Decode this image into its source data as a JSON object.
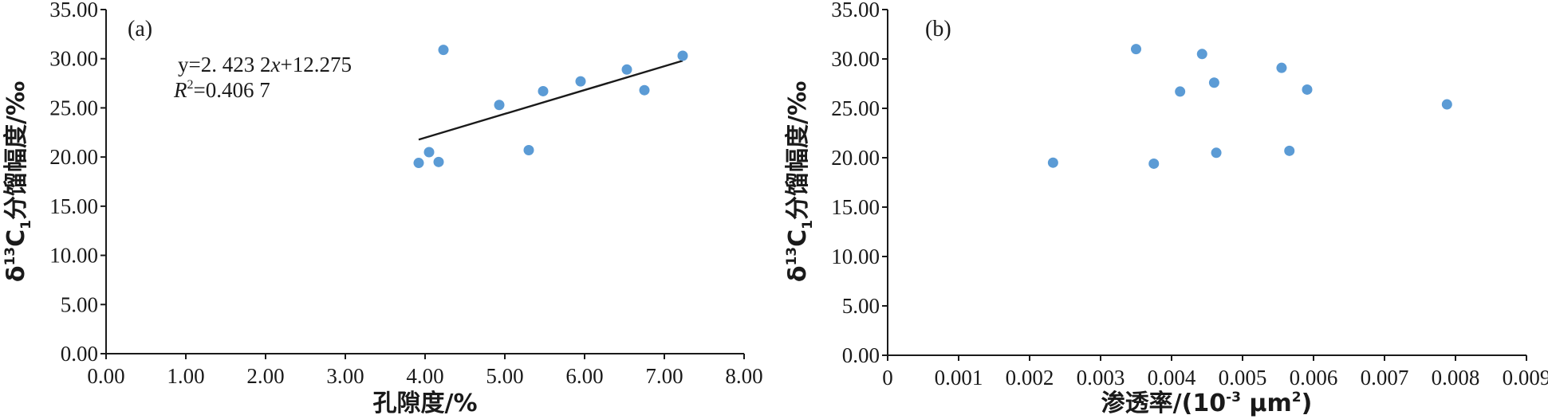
{
  "colors": {
    "point": "#5b9bd5",
    "axis": "#1a1a1a",
    "fit_line": "#1a1a1a"
  },
  "chart_data": [
    {
      "panel_label": "(a)",
      "type": "scatter",
      "xlabel": "孔隙度/%",
      "ylabel_parts": {
        "delta": "δ",
        "sup": "13",
        "c": "C",
        "sub": "1",
        "rest": "分馏幅度/‰"
      },
      "xlim": [
        0,
        8
      ],
      "ylim": [
        0,
        35
      ],
      "x_ticks": [
        "0.00",
        "1.00",
        "2.00",
        "3.00",
        "4.00",
        "5.00",
        "6.00",
        "7.00",
        "8.00"
      ],
      "y_ticks": [
        "0.00",
        "5.00",
        "10.00",
        "15.00",
        "20.00",
        "25.00",
        "30.00",
        "35.00"
      ],
      "points": [
        {
          "x": 3.92,
          "y": 19.4
        },
        {
          "x": 4.05,
          "y": 20.5
        },
        {
          "x": 4.17,
          "y": 19.5
        },
        {
          "x": 4.23,
          "y": 30.9
        },
        {
          "x": 4.93,
          "y": 25.3
        },
        {
          "x": 5.3,
          "y": 20.7
        },
        {
          "x": 5.48,
          "y": 26.7
        },
        {
          "x": 5.95,
          "y": 27.7
        },
        {
          "x": 6.53,
          "y": 28.9
        },
        {
          "x": 6.75,
          "y": 26.8
        },
        {
          "x": 7.23,
          "y": 30.3
        }
      ],
      "trendline": {
        "slope": 2.4232,
        "intercept": 12.275,
        "x_range": [
          3.92,
          7.23
        ]
      },
      "equation": {
        "y_text": "y=2. 423 2",
        "x_var": "x",
        "const": "+12.275",
        "r_var": "R",
        "r_sup": "2",
        "r_rest": "=0.406 7"
      },
      "grid": false
    },
    {
      "panel_label": "(b)",
      "type": "scatter",
      "xlabel_main": "渗透率/(10",
      "xlabel_sup": "-3",
      "xlabel_mid": " μm",
      "xlabel_sup2": "2",
      "xlabel_end": ")",
      "ylabel_parts": {
        "delta": "δ",
        "sup": "13",
        "c": "C",
        "sub": "1",
        "rest": "分馏幅度/‰"
      },
      "xlim": [
        0,
        0.009
      ],
      "ylim": [
        0,
        35
      ],
      "x_ticks": [
        "0",
        "0.001",
        "0.002",
        "0.003",
        "0.004",
        "0.005",
        "0.006",
        "0.007",
        "0.008",
        "0.009"
      ],
      "y_ticks": [
        "0.00",
        "5.00",
        "10.00",
        "15.00",
        "20.00",
        "25.00",
        "30.00",
        "35.00"
      ],
      "points": [
        {
          "x": 0.00233,
          "y": 19.5
        },
        {
          "x": 0.0035,
          "y": 31.0
        },
        {
          "x": 0.00375,
          "y": 19.4
        },
        {
          "x": 0.00412,
          "y": 26.7
        },
        {
          "x": 0.00443,
          "y": 30.5
        },
        {
          "x": 0.0046,
          "y": 27.6
        },
        {
          "x": 0.00463,
          "y": 20.5
        },
        {
          "x": 0.00555,
          "y": 29.1
        },
        {
          "x": 0.00566,
          "y": 20.7
        },
        {
          "x": 0.00591,
          "y": 26.9
        },
        {
          "x": 0.00788,
          "y": 25.4
        }
      ],
      "grid": false
    }
  ]
}
